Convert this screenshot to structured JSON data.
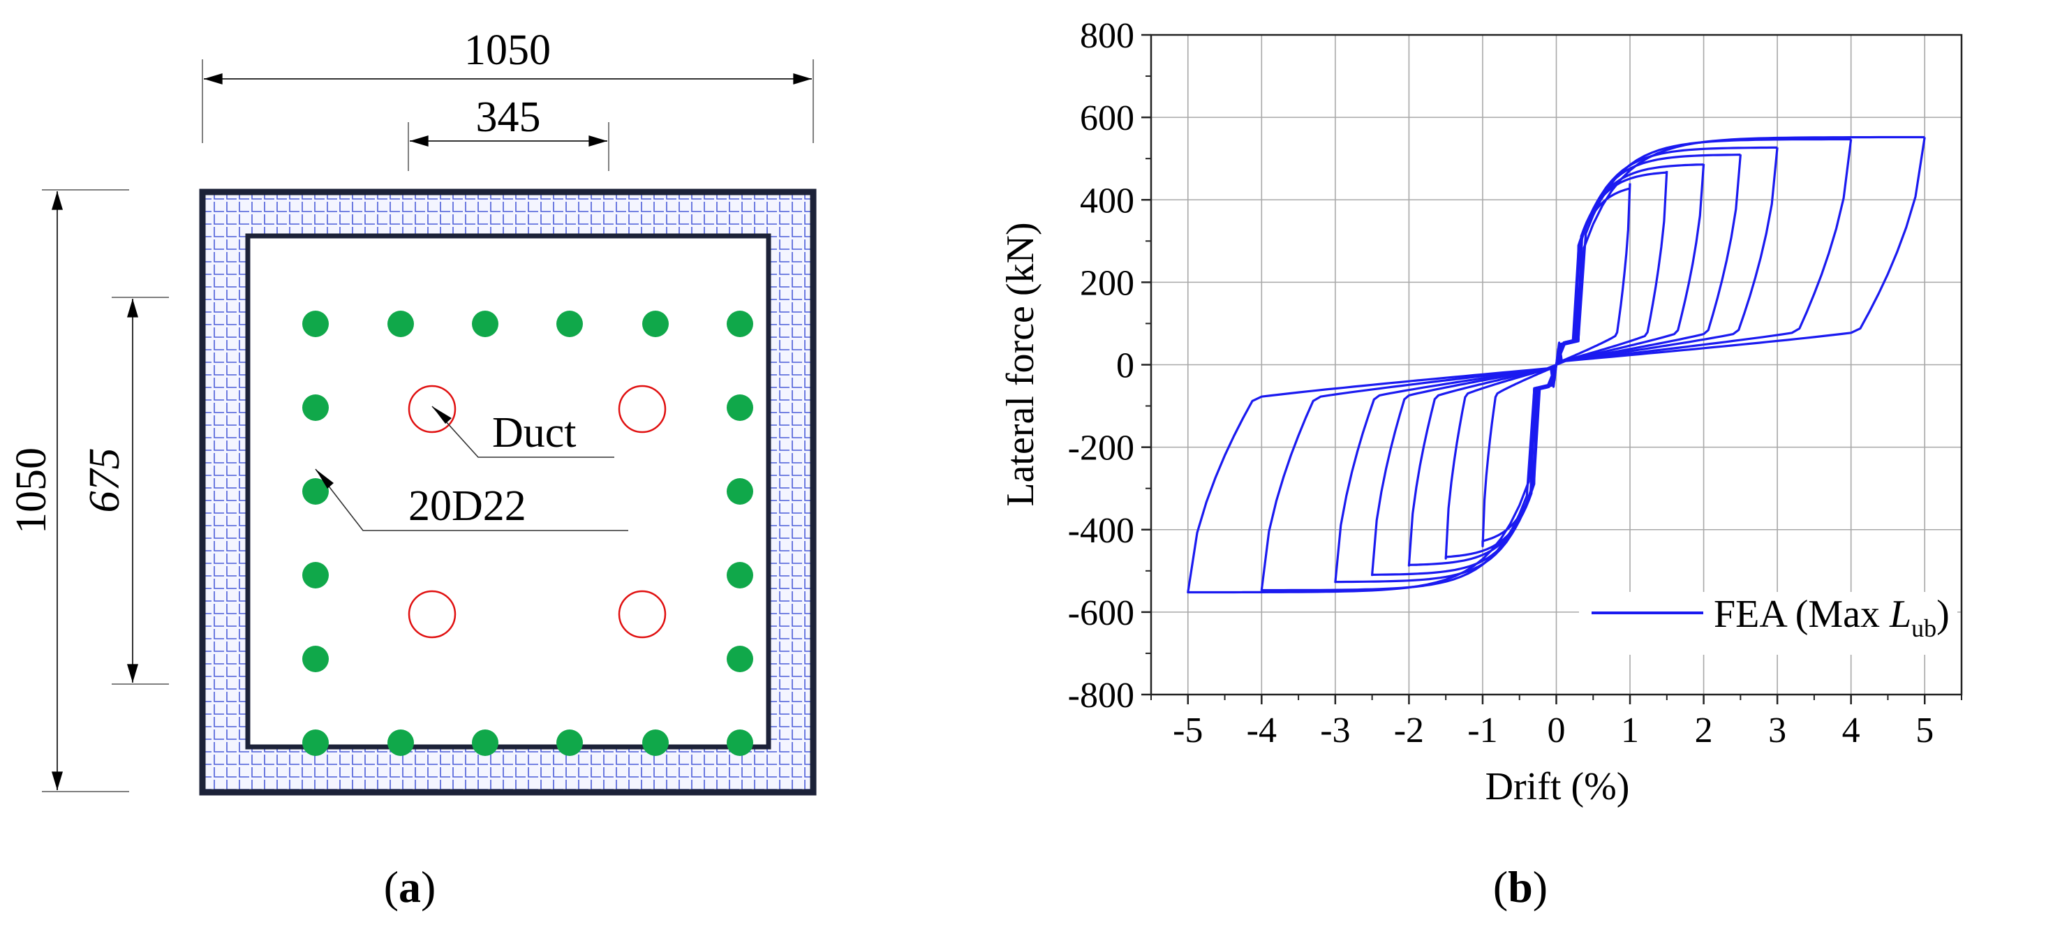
{
  "panels": [
    {
      "label_open": "(",
      "label": "a",
      "label_close": ")"
    },
    {
      "label_open": "(",
      "label": "b",
      "label_close": ")"
    }
  ],
  "section_drawing": {
    "dim_total_width": "1050",
    "dim_duct_spacing_x": "345",
    "dim_total_height": "1050",
    "dim_duct_spacing_y": "675",
    "label_duct": "Duct",
    "label_rebar": "20D22",
    "rebar_count": 20,
    "duct_count": 4,
    "colors": {
      "rebar": "#10a84a",
      "duct": "#e01010",
      "outline": "#1c2238",
      "mesh": "#4a5bd8",
      "mesh_bg": "#f4f5ff"
    }
  },
  "chart_data": {
    "type": "line",
    "xlabel": "Drift (%)",
    "ylabel": "Lateral force (kN)",
    "xlim": [
      -5.5,
      5.5
    ],
    "ylim": [
      -800,
      800
    ],
    "x_ticks": [
      -5,
      -4,
      -3,
      -2,
      -1,
      0,
      1,
      2,
      3,
      4,
      5
    ],
    "y_ticks": [
      800,
      600,
      400,
      200,
      0,
      -200,
      -400,
      -600,
      -800
    ],
    "grid": true,
    "legend_position": "bottom-right",
    "series": [
      {
        "name_prefix": "FEA (Max ",
        "name_symbol": "L",
        "name_subscript": "ub",
        "name_suffix": ")",
        "color": "#1a1af0",
        "loops": [
          {
            "d": 1.0,
            "fp": 440,
            "up_end": 45,
            "down_end": -45
          },
          {
            "d": 1.5,
            "fp": 470,
            "up_end": 45,
            "down_end": -45
          },
          {
            "d": 2.0,
            "fp": 487,
            "up_end": 48,
            "down_end": -48
          },
          {
            "d": 2.5,
            "fp": 510,
            "up_end": 48,
            "down_end": -48
          },
          {
            "d": 3.0,
            "fp": 527,
            "up_end": 48,
            "down_end": -48
          },
          {
            "d": 4.0,
            "fp": 547,
            "up_end": 50,
            "down_end": -50
          },
          {
            "d": 5.0,
            "fp": 552,
            "up_end": 50,
            "down_end": -50
          }
        ]
      }
    ]
  }
}
